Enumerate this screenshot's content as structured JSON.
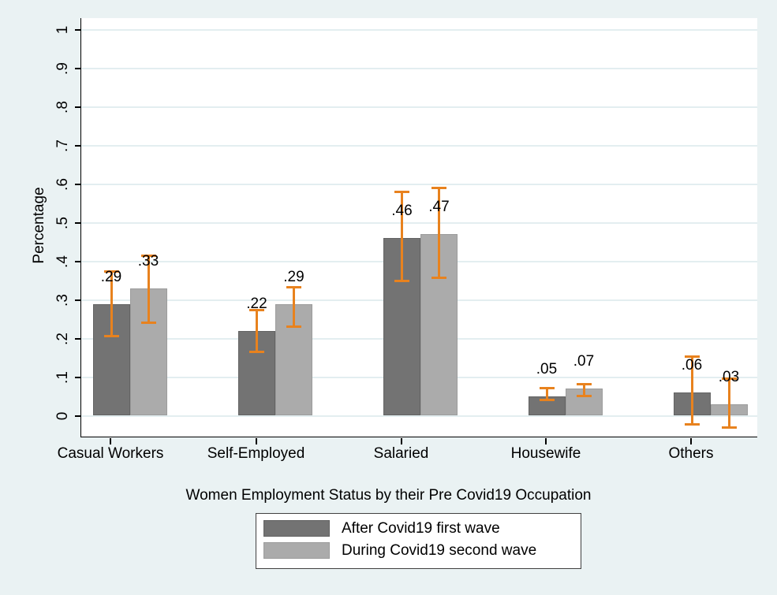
{
  "colors": {
    "background": "#eaf2f3",
    "plot_background": "#ffffff",
    "gridline": "#e3eef0",
    "axis": "#000000",
    "text": "#000000",
    "error_bar": "#e8821e",
    "legend_background": "#ffffff",
    "legend_border": "#404040",
    "series1_fill": "#737373",
    "series1_border": "#636363",
    "series2_fill": "#ababab",
    "series2_border": "#9c9c9c"
  },
  "chart_data": {
    "type": "bar",
    "title": "",
    "xlabel": "Women Employment Status by their Pre Covid19 Occupation",
    "ylabel": "Percentage",
    "ylim": [
      -0.06,
      1.03
    ],
    "ytick_values": [
      0,
      0.1,
      0.2,
      0.3,
      0.4,
      0.5,
      0.6,
      0.7,
      0.8,
      0.9,
      1
    ],
    "ytick_labels": [
      "0",
      ".1",
      ".2",
      ".3",
      ".4",
      ".5",
      ".6",
      ".7",
      ".8",
      ".9",
      "1"
    ],
    "grid": "horizontal",
    "legend_position": "bottom",
    "error_bars": true,
    "categories": [
      "Casual Workers",
      "Self-Employed",
      "Salaried",
      "Housewife",
      "Others"
    ],
    "series": [
      {
        "name": "After Covid19 first wave",
        "color": "#737373",
        "values": [
          0.29,
          0.22,
          0.46,
          0.05,
          0.06
        ],
        "value_labels": [
          ".29",
          ".22",
          ".46",
          ".05",
          ".06"
        ],
        "ci_low": [
          0.205,
          0.165,
          0.348,
          0.04,
          -0.024
        ],
        "ci_high": [
          0.375,
          0.275,
          0.581,
          0.072,
          0.155
        ]
      },
      {
        "name": "During Covid19 second wave",
        "color": "#ababab",
        "values": [
          0.33,
          0.29,
          0.47,
          0.07,
          0.03
        ],
        "value_labels": [
          ".33",
          ".29",
          ".47",
          ".07",
          ".03"
        ],
        "ci_low": [
          0.24,
          0.23,
          0.356,
          0.05,
          -0.031
        ],
        "ci_high": [
          0.415,
          0.335,
          0.591,
          0.083,
          0.097
        ]
      }
    ]
  }
}
